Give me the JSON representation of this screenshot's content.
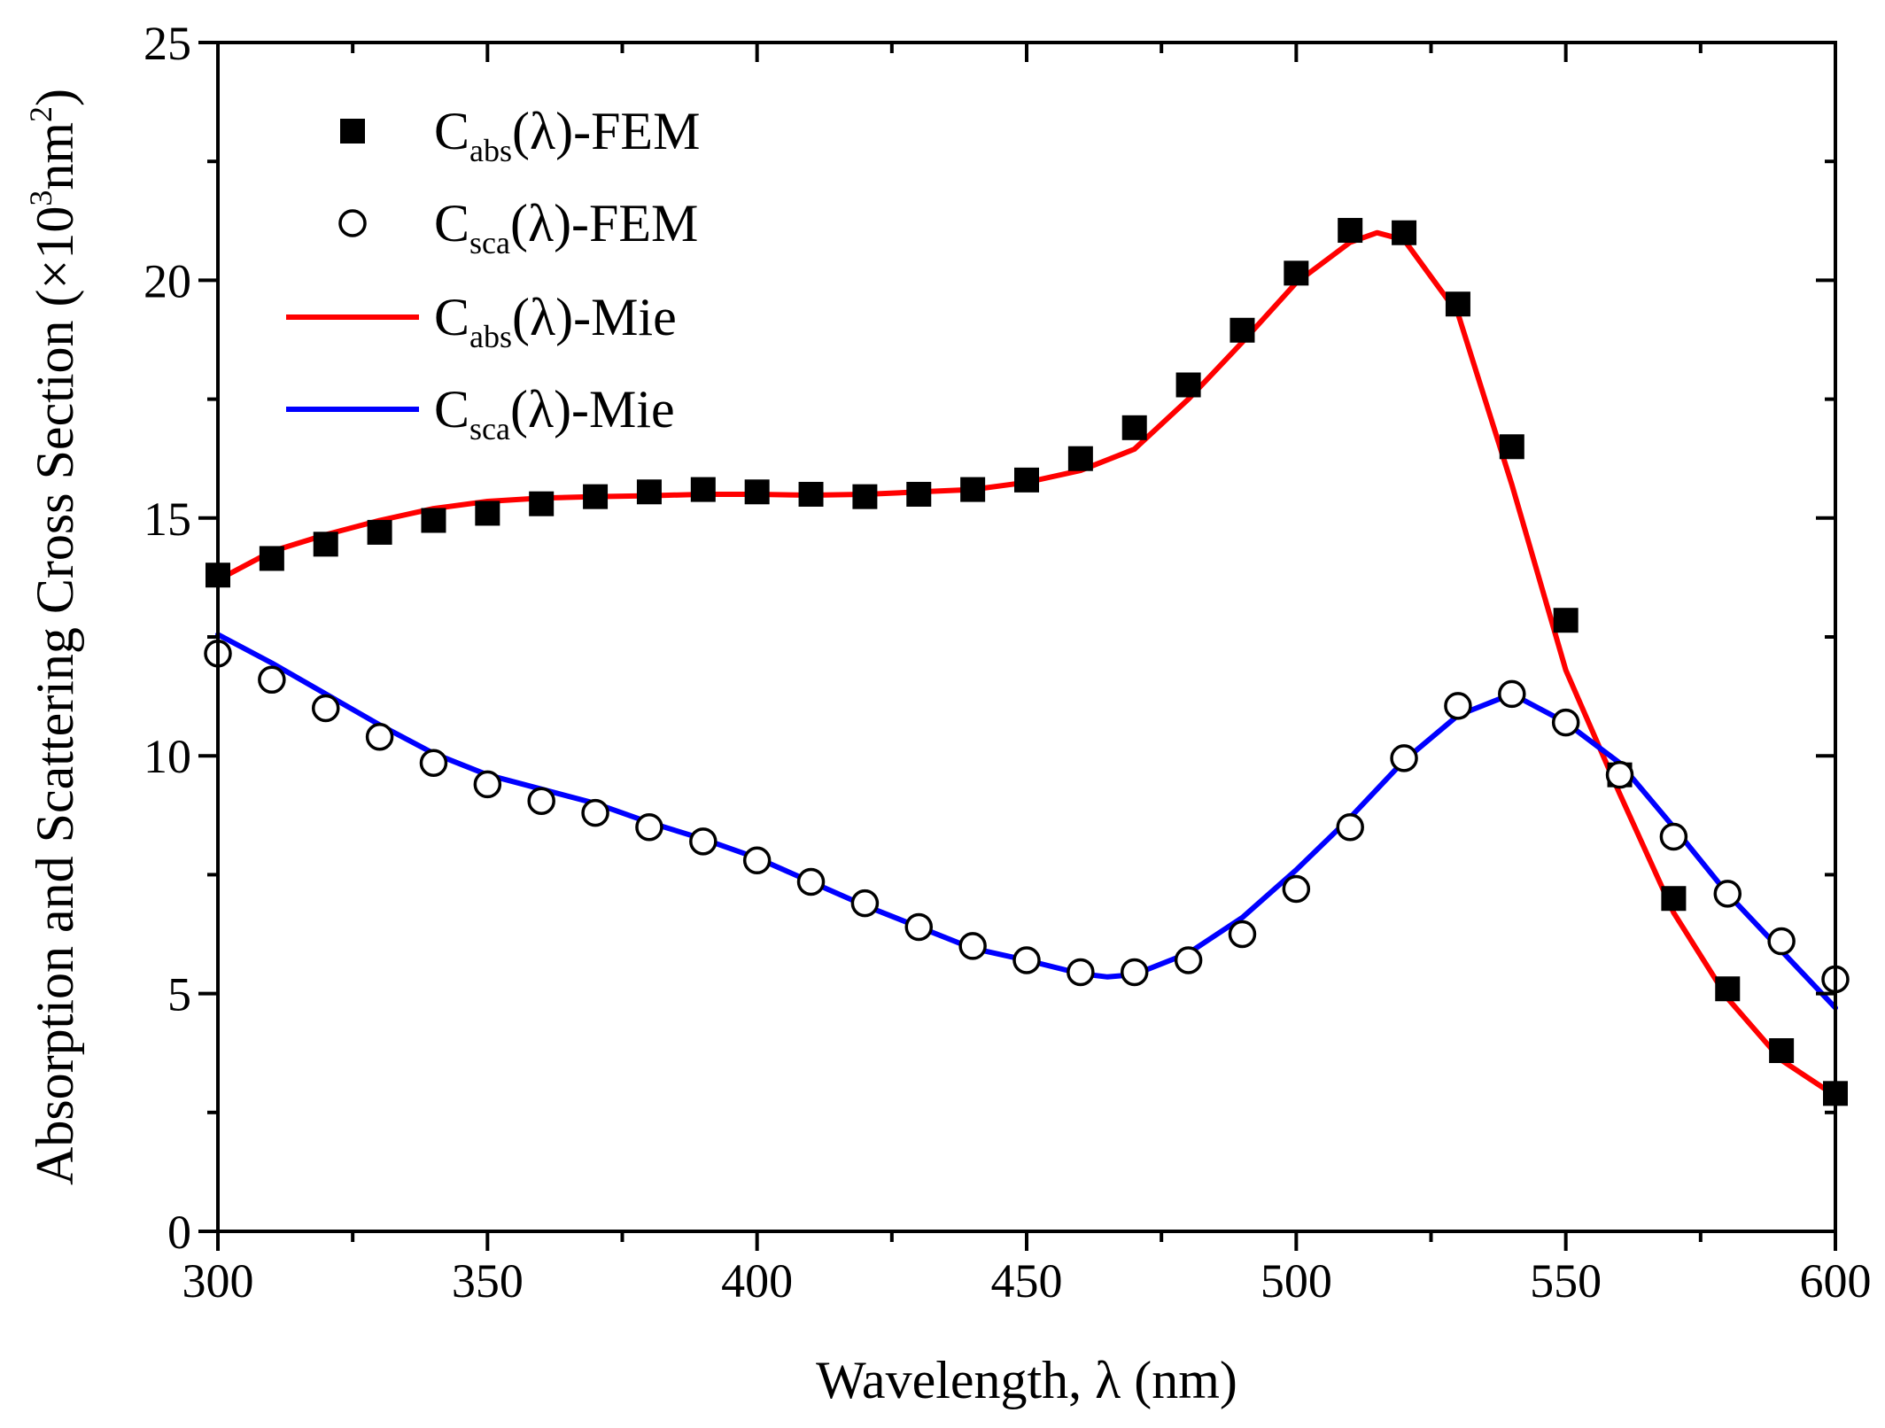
{
  "chart_data": {
    "type": "line",
    "title": "",
    "xlabel": "Wavelength, λ (nm)",
    "ylabel": {
      "main": "Absorption and Scattering Cross Section (×10",
      "sup": "3",
      "unit": "nm",
      "unit_sup": "2",
      "close": ")"
    },
    "xlim": [
      300,
      600
    ],
    "ylim": [
      0,
      25
    ],
    "xticks": [
      300,
      350,
      400,
      450,
      500,
      550,
      600
    ],
    "yticks": [
      0,
      5,
      10,
      15,
      20,
      25
    ],
    "grid": false,
    "legend_position": "top-left",
    "series": [
      {
        "name": "C_abs(λ)-FEM",
        "legend": {
          "base": "C",
          "sub": "abs",
          "suffix": "(λ)-FEM"
        },
        "marker": "filled-square",
        "color": "#000000",
        "x": [
          300,
          310,
          320,
          330,
          340,
          350,
          360,
          370,
          380,
          390,
          400,
          410,
          420,
          430,
          440,
          450,
          460,
          470,
          480,
          490,
          500,
          510,
          520,
          530,
          540,
          550,
          560,
          570,
          580,
          590,
          600
        ],
        "y": [
          13.8,
          14.15,
          14.45,
          14.7,
          14.95,
          15.1,
          15.3,
          15.45,
          15.55,
          15.6,
          15.55,
          15.5,
          15.45,
          15.5,
          15.6,
          15.8,
          16.25,
          16.9,
          17.8,
          18.95,
          20.15,
          21.05,
          21.0,
          19.5,
          16.5,
          12.85,
          9.6,
          7.0,
          5.1,
          3.8,
          2.9
        ]
      },
      {
        "name": "C_sca(λ)-FEM",
        "legend": {
          "base": "C",
          "sub": "sca",
          "suffix": "(λ)-FEM"
        },
        "marker": "open-circle",
        "color": "#000000",
        "x": [
          300,
          310,
          320,
          330,
          340,
          350,
          360,
          370,
          380,
          390,
          400,
          410,
          420,
          430,
          440,
          450,
          460,
          470,
          480,
          490,
          500,
          510,
          520,
          530,
          540,
          550,
          560,
          570,
          580,
          590,
          600
        ],
        "y": [
          12.15,
          11.6,
          11.0,
          10.4,
          9.85,
          9.4,
          9.05,
          8.8,
          8.5,
          8.2,
          7.8,
          7.35,
          6.9,
          6.4,
          6.0,
          5.7,
          5.45,
          5.45,
          5.7,
          6.25,
          7.2,
          8.5,
          9.95,
          11.05,
          11.3,
          10.7,
          9.6,
          8.3,
          7.1,
          6.1,
          5.3
        ]
      },
      {
        "name": "C_abs(λ)-Mie",
        "legend": {
          "base": "C",
          "sub": "abs",
          "suffix": "(λ)-Mie"
        },
        "marker": "line",
        "color": "#ff0000",
        "x": [
          300,
          310,
          320,
          330,
          340,
          350,
          360,
          370,
          380,
          390,
          400,
          410,
          420,
          430,
          440,
          450,
          460,
          470,
          480,
          490,
          500,
          510,
          515,
          520,
          530,
          540,
          550,
          560,
          570,
          580,
          590,
          600
        ],
        "y": [
          13.7,
          14.3,
          14.65,
          14.95,
          15.2,
          15.35,
          15.42,
          15.45,
          15.47,
          15.5,
          15.5,
          15.48,
          15.5,
          15.55,
          15.6,
          15.75,
          16.0,
          16.45,
          17.5,
          18.7,
          19.95,
          20.8,
          21.0,
          20.85,
          19.3,
          15.7,
          11.8,
          9.2,
          6.7,
          4.9,
          3.6,
          2.85
        ]
      },
      {
        "name": "C_sca(λ)-Mie",
        "legend": {
          "base": "C",
          "sub": "sca",
          "suffix": "(λ)-Mie"
        },
        "marker": "line",
        "color": "#0000ff",
        "x": [
          300,
          310,
          320,
          330,
          340,
          350,
          360,
          370,
          380,
          390,
          400,
          410,
          420,
          430,
          440,
          450,
          460,
          465,
          470,
          480,
          490,
          500,
          510,
          520,
          530,
          540,
          550,
          560,
          570,
          580,
          590,
          600
        ],
        "y": [
          12.55,
          11.95,
          11.3,
          10.65,
          10.05,
          9.6,
          9.3,
          9.0,
          8.6,
          8.25,
          7.85,
          7.35,
          6.85,
          6.4,
          5.95,
          5.7,
          5.42,
          5.35,
          5.4,
          5.85,
          6.6,
          7.6,
          8.7,
          9.9,
          10.85,
          11.3,
          10.7,
          9.85,
          8.5,
          7.1,
          5.9,
          4.7
        ]
      }
    ]
  }
}
